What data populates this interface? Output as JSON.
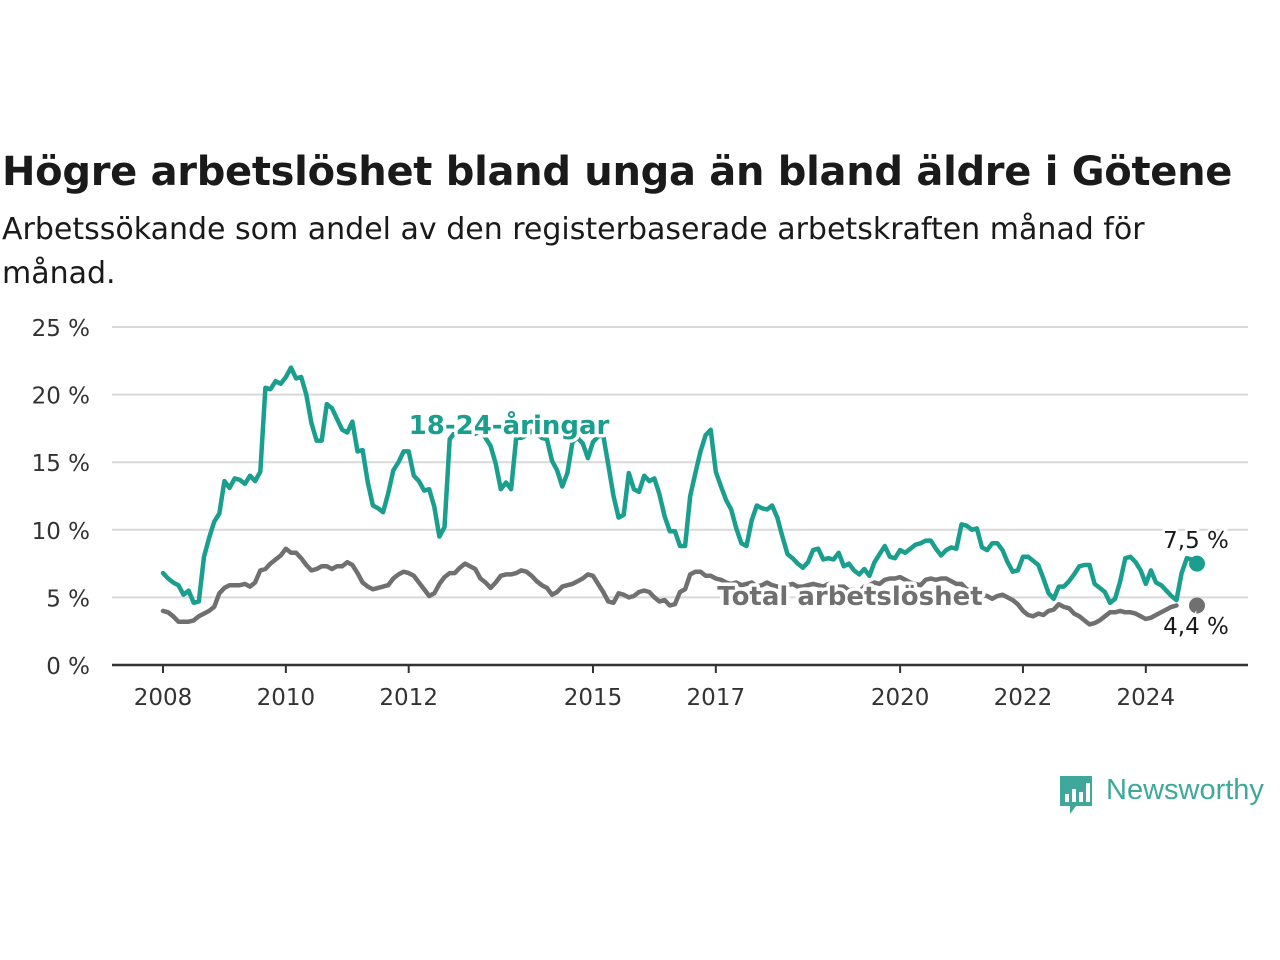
{
  "title": "Högre arbetslöshet bland unga än bland äldre i Götene",
  "subtitle": "Arbetssökande som andel av den registerbaserade arbetskraften månad för månad.",
  "logo_text": "Newsworthy",
  "colors": {
    "youth": "#1a9e8e",
    "total": "#707070",
    "grid": "#d9d9d9",
    "axis": "#333333",
    "logo": "#3fa89b"
  },
  "chart_data": {
    "type": "line",
    "ylim": [
      0,
      25
    ],
    "y_ticks": [
      0,
      5,
      10,
      15,
      20,
      25
    ],
    "y_tick_labels": [
      "0 %",
      "5 %",
      "10 %",
      "15 %",
      "20 %",
      "25 %"
    ],
    "x_ticks": [
      "2008",
      "2010",
      "2012",
      "2015",
      "2017",
      "2020",
      "2022",
      "2024"
    ],
    "grid": true,
    "x_start": "2008-01",
    "x_end": "2024-12",
    "series": [
      {
        "name": "18-24-åringar",
        "end_label": "7,5 %",
        "values": [
          6.8,
          6.4,
          6.1,
          5.9,
          5.2,
          5.5,
          4.6,
          4.7,
          8.0,
          9.4,
          10.6,
          11.2,
          13.6,
          13.1,
          13.8,
          13.7,
          13.4,
          14.0,
          13.6,
          14.3,
          20.5,
          20.4,
          21.0,
          20.8,
          21.3,
          22.0,
          21.2,
          21.3,
          20.0,
          17.9,
          16.6,
          16.6,
          19.3,
          19.0,
          18.2,
          17.4,
          17.2,
          18.0,
          15.8,
          15.9,
          13.5,
          11.8,
          11.6,
          11.3,
          12.7,
          14.4,
          15.0,
          15.8,
          15.8,
          14.0,
          13.6,
          12.9,
          13.0,
          11.7,
          9.5,
          10.2,
          16.7,
          17.2,
          17.6,
          17.4,
          17.3,
          17.1,
          17.4,
          16.8,
          16.2,
          14.9,
          13.0,
          13.5,
          13.0,
          16.8,
          16.8,
          17.0,
          17.3,
          17.1,
          16.8,
          16.7,
          15.1,
          14.4,
          13.2,
          14.2,
          16.5,
          16.8,
          16.4,
          15.3,
          16.5,
          16.9,
          17.0,
          14.8,
          12.5,
          10.9,
          11.1,
          14.2,
          13.0,
          12.8,
          14.0,
          13.6,
          13.8,
          12.6,
          11.0,
          9.9,
          9.9,
          8.8,
          8.8,
          12.5,
          14.2,
          15.8,
          17.0,
          17.4,
          14.3,
          13.2,
          12.2,
          11.5,
          10.1,
          9.0,
          8.8,
          10.7,
          11.8,
          11.6,
          11.5,
          11.8,
          10.9,
          9.5,
          8.2,
          7.9,
          7.5,
          7.2,
          7.6,
          8.5,
          8.6,
          7.8,
          7.9,
          7.8,
          8.3,
          7.3,
          7.5,
          7.0,
          6.7,
          7.1,
          6.6,
          7.6,
          8.2,
          8.8,
          8.0,
          7.9,
          8.5,
          8.3,
          8.6,
          8.9,
          9.0,
          9.2,
          9.2,
          8.6,
          8.1,
          8.5,
          8.7,
          8.6,
          10.4,
          10.3,
          10.0,
          10.1,
          8.7,
          8.5,
          9.0,
          9.0,
          8.5,
          7.6,
          6.9,
          7.0,
          8.0,
          8.0,
          7.7,
          7.4,
          6.4,
          5.3,
          4.9,
          5.8,
          5.8,
          6.2,
          6.7,
          7.3,
          7.4,
          7.4,
          6.0,
          5.7,
          5.4,
          4.6,
          4.9,
          6.2,
          7.9,
          8.0,
          7.6,
          7.0,
          6.0,
          7.0,
          6.1,
          5.9,
          5.5,
          5.1,
          4.8,
          6.8,
          7.9,
          7.8,
          7.5
        ]
      },
      {
        "name": "Total arbetslöshet",
        "end_label": "4,4 %",
        "values": [
          4.0,
          3.9,
          3.6,
          3.2,
          3.2,
          3.2,
          3.3,
          3.6,
          3.8,
          4.0,
          4.3,
          5.3,
          5.7,
          5.9,
          5.9,
          5.9,
          6.0,
          5.8,
          6.1,
          7.0,
          7.1,
          7.5,
          7.8,
          8.1,
          8.6,
          8.3,
          8.3,
          7.9,
          7.4,
          7.0,
          7.1,
          7.3,
          7.3,
          7.1,
          7.3,
          7.3,
          7.6,
          7.4,
          6.8,
          6.1,
          5.8,
          5.6,
          5.7,
          5.8,
          5.9,
          6.4,
          6.7,
          6.9,
          6.8,
          6.6,
          6.1,
          5.6,
          5.1,
          5.3,
          6.0,
          6.5,
          6.8,
          6.8,
          7.2,
          7.5,
          7.3,
          7.1,
          6.4,
          6.1,
          5.7,
          6.1,
          6.6,
          6.7,
          6.7,
          6.8,
          7.0,
          6.9,
          6.6,
          6.2,
          5.9,
          5.7,
          5.2,
          5.4,
          5.8,
          5.9,
          6.0,
          6.2,
          6.4,
          6.7,
          6.6,
          6.0,
          5.4,
          4.7,
          4.6,
          5.3,
          5.2,
          5.0,
          5.1,
          5.4,
          5.5,
          5.4,
          5.0,
          4.7,
          4.8,
          4.4,
          4.5,
          5.4,
          5.6,
          6.7,
          6.9,
          6.9,
          6.6,
          6.6,
          6.4,
          6.3,
          6.1,
          6.0,
          6.1,
          5.9,
          6.0,
          6.1,
          5.8,
          5.9,
          6.1,
          5.9,
          5.8,
          5.8,
          5.9,
          6.0,
          5.8,
          5.8,
          5.9,
          6.0,
          5.9,
          5.8,
          6.0,
          5.8,
          5.8,
          5.8,
          5.5,
          5.6,
          5.4,
          5.8,
          5.9,
          6.1,
          6.0,
          6.3,
          6.4,
          6.4,
          6.5,
          6.3,
          6.1,
          6.0,
          5.9,
          6.3,
          6.4,
          6.3,
          6.4,
          6.4,
          6.2,
          6.0,
          6.0,
          5.6,
          5.5,
          5.3,
          5.2,
          5.1,
          4.9,
          5.1,
          5.2,
          5.0,
          4.8,
          4.5,
          4.0,
          3.7,
          3.6,
          3.8,
          3.7,
          4.0,
          4.1,
          4.5,
          4.3,
          4.2,
          3.8,
          3.6,
          3.3,
          3.0,
          3.1,
          3.3,
          3.6,
          3.9,
          3.9,
          4.0,
          3.9,
          3.9,
          3.8,
          3.6,
          3.4,
          3.5,
          3.7,
          3.9,
          4.1,
          4.3,
          4.4
        ]
      }
    ]
  }
}
